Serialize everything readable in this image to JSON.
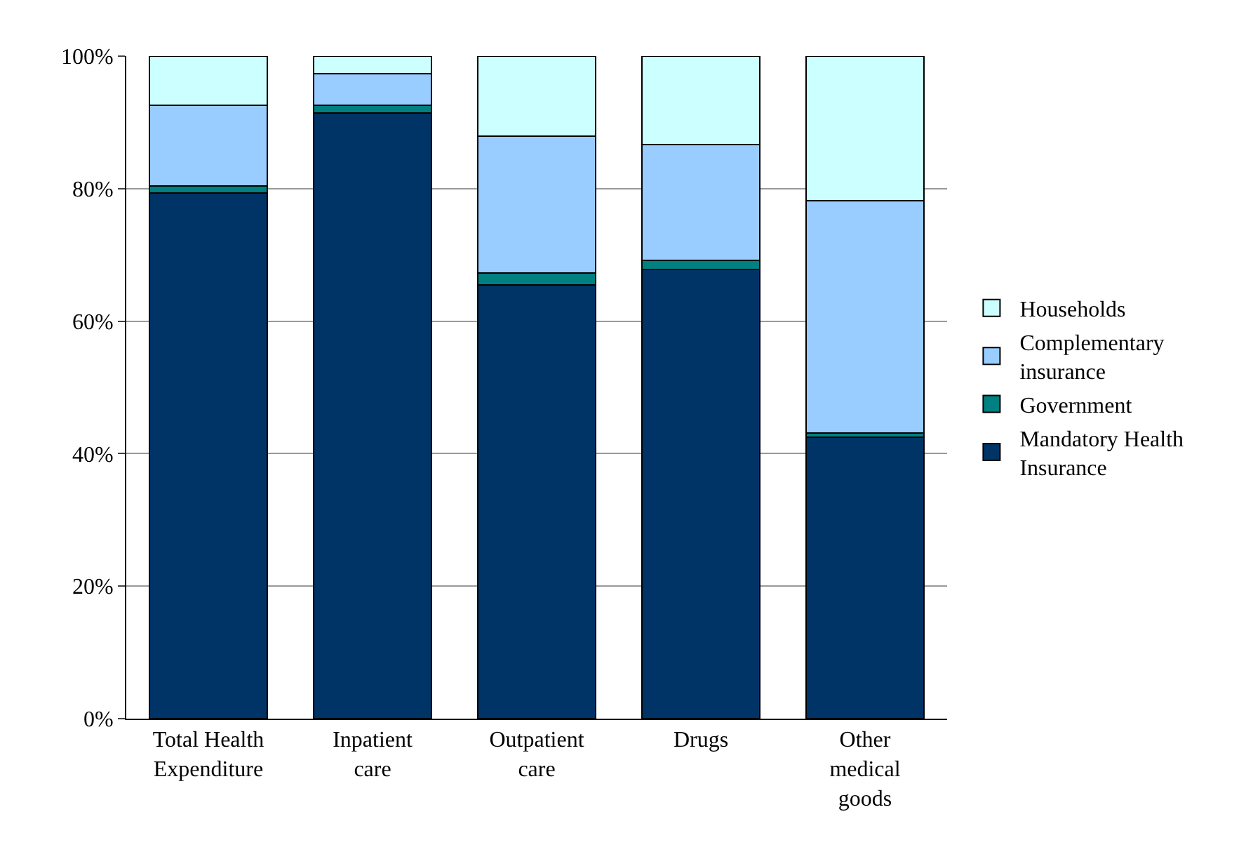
{
  "chart_data": {
    "type": "bar",
    "stacked": true,
    "categories": [
      "Total Health Expenditure",
      "Inpatient care",
      "Outpatient care",
      "Drugs",
      "Other medical goods"
    ],
    "series": [
      {
        "name": "Mandatory Health Insurance",
        "color": "#003366",
        "values": [
          79.3,
          91.4,
          65.5,
          67.8,
          42.5
        ]
      },
      {
        "name": "Government",
        "color": "#008080",
        "values": [
          1.1,
          1.2,
          1.8,
          1.4,
          0.6
        ]
      },
      {
        "name": "Complementary insurance",
        "color": "#99ccff",
        "values": [
          12.2,
          4.8,
          20.6,
          17.5,
          35.1
        ]
      },
      {
        "name": "Households",
        "color": "#ccffff",
        "values": [
          7.4,
          2.6,
          12.1,
          13.3,
          21.8
        ]
      }
    ],
    "ylim": [
      0,
      100
    ],
    "yticks": [
      {
        "value": 0,
        "label": "0%"
      },
      {
        "value": 20,
        "label": "20%"
      },
      {
        "value": 40,
        "label": "40%"
      },
      {
        "value": 60,
        "label": "60%"
      },
      {
        "value": 80,
        "label": "80%"
      },
      {
        "value": 100,
        "label": "100%"
      }
    ],
    "grid": "y",
    "legend": "right"
  }
}
